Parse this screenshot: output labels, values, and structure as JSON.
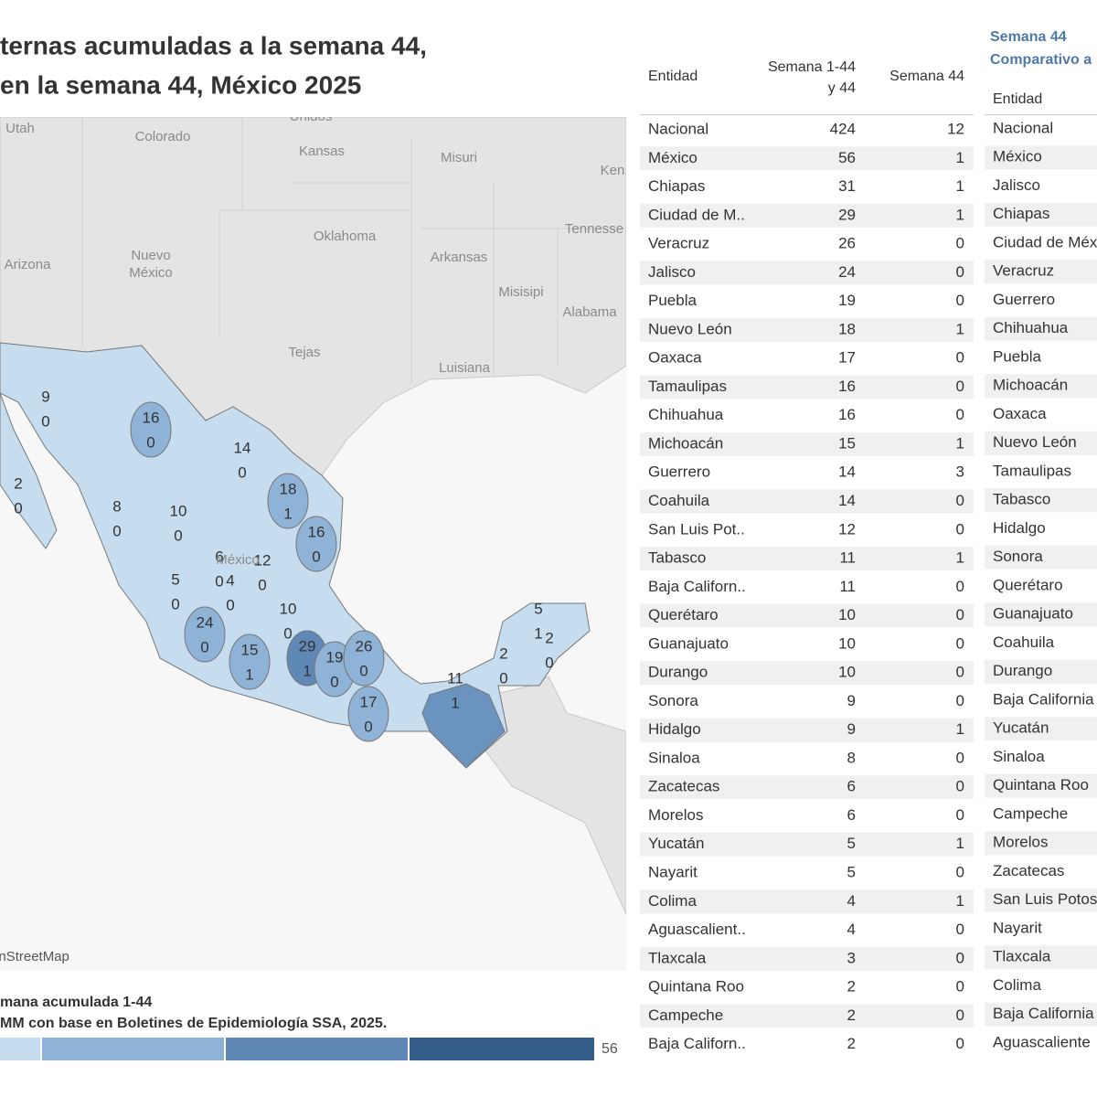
{
  "title": [
    "ternas acumuladas a la semana 44,",
    "en la semana 44, México 2025"
  ],
  "map": {
    "places": [
      "Unidos",
      "Utah",
      "Colorado",
      "Kansas",
      "Misuri",
      "Ken",
      "Tennesse",
      "Oklahoma",
      "Arkansas",
      "Nuevo",
      "México",
      "Arizona",
      "Misisipi",
      "Alabama",
      "Tejas",
      "Luisiana",
      "México"
    ],
    "attribution": "enStreetMap",
    "state_labels": [
      [
        9,
        0
      ],
      [
        2,
        0
      ],
      [
        16,
        0
      ],
      [
        14,
        0
      ],
      [
        18,
        1
      ],
      [
        8,
        0
      ],
      [
        10,
        0
      ],
      [
        16,
        0
      ],
      [
        6,
        0
      ],
      [
        4,
        0
      ],
      [
        12,
        0
      ],
      [
        5,
        0
      ],
      [
        24,
        0
      ],
      [
        10,
        0
      ],
      [
        15,
        1
      ],
      [
        29,
        1
      ],
      [
        19,
        0
      ],
      [
        26,
        0
      ],
      [
        17,
        0
      ],
      [
        11,
        1
      ],
      [
        2,
        0
      ],
      [
        5,
        1
      ],
      [
        2,
        0
      ]
    ]
  },
  "legend": {
    "title": "mana acumulada 1-44",
    "source": "MM con base en Boletines de Epidemiología SSA, 2025.",
    "max": 56
  },
  "table1": {
    "headers": [
      "Entidad",
      "Semana 1-44",
      "y 44",
      "Semana 44"
    ],
    "rows": [
      [
        "Nacional",
        424,
        12
      ],
      [
        "México",
        56,
        1
      ],
      [
        "Chiapas",
        31,
        1
      ],
      [
        "Ciudad de M..",
        29,
        1
      ],
      [
        "Veracruz",
        26,
        0
      ],
      [
        "Jalisco",
        24,
        0
      ],
      [
        "Puebla",
        19,
        0
      ],
      [
        "Nuevo León",
        18,
        1
      ],
      [
        "Oaxaca",
        17,
        0
      ],
      [
        "Tamaulipas",
        16,
        0
      ],
      [
        "Chihuahua",
        16,
        0
      ],
      [
        "Michoacán",
        15,
        1
      ],
      [
        "Guerrero",
        14,
        3
      ],
      [
        "Coahuila",
        14,
        0
      ],
      [
        "San Luis Pot..",
        12,
        0
      ],
      [
        "Tabasco",
        11,
        1
      ],
      [
        "Baja Californ..",
        11,
        0
      ],
      [
        "Querétaro",
        10,
        0
      ],
      [
        "Guanajuato",
        10,
        0
      ],
      [
        "Durango",
        10,
        0
      ],
      [
        "Sonora",
        9,
        0
      ],
      [
        "Hidalgo",
        9,
        1
      ],
      [
        "Sinaloa",
        8,
        0
      ],
      [
        "Zacatecas",
        6,
        0
      ],
      [
        "Morelos",
        6,
        0
      ],
      [
        "Yucatán",
        5,
        1
      ],
      [
        "Nayarit",
        5,
        0
      ],
      [
        "Colima",
        4,
        1
      ],
      [
        "Aguascalient..",
        4,
        0
      ],
      [
        "Tlaxcala",
        3,
        0
      ],
      [
        "Quintana Roo",
        2,
        0
      ],
      [
        "Campeche",
        2,
        0
      ],
      [
        "Baja Californ..",
        2,
        0
      ]
    ]
  },
  "table2": {
    "title": "Semana 44",
    "subtitle": "Comparativo a",
    "header": "Entidad",
    "rows": [
      "Nacional",
      "México",
      "Jalisco",
      "Chiapas",
      "Ciudad de Méx",
      "Veracruz",
      "Guerrero",
      "Chihuahua",
      "Puebla",
      "Michoacán",
      "Oaxaca",
      "Nuevo León",
      "Tamaulipas",
      "Tabasco",
      "Hidalgo",
      "Sonora",
      "Querétaro",
      "Guanajuato",
      "Coahuila",
      "Durango",
      "Baja California",
      "Yucatán",
      "Sinaloa",
      "Quintana Roo",
      "Campeche",
      "Morelos",
      "Zacatecas",
      "San Luis Potos",
      "Nayarit",
      "Tlaxcala",
      "Colima",
      "Baja California",
      "Aguascaliente"
    ]
  }
}
